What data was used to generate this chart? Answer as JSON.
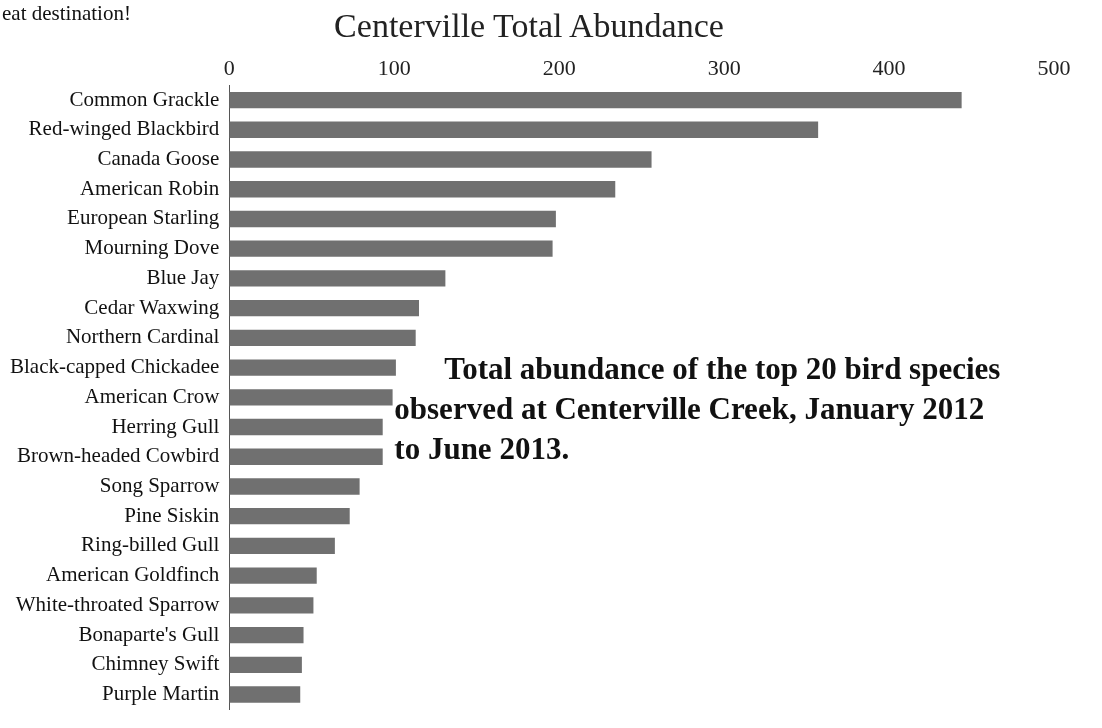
{
  "chart_data": {
    "type": "bar",
    "orientation": "horizontal",
    "title": "Centerville Total Abundance",
    "categories": [
      "Common Grackle",
      "Red-winged Blackbird",
      "Canada Goose",
      "American Robin",
      "European Starling",
      "Mourning Dove",
      "Blue Jay",
      "Cedar Waxwing",
      "Northern Cardinal",
      "Black-capped Chickadee",
      "American Crow",
      "Herring Gull",
      "Brown-headed Cowbird",
      "Song Sparrow",
      "Pine Siskin",
      "Ring-billed Gull",
      "American Goldfinch",
      "White-throated Sparrow",
      "Bonaparte's Gull",
      "Chimney Swift",
      "Purple Martin"
    ],
    "values": [
      444,
      357,
      256,
      234,
      198,
      196,
      131,
      115,
      113,
      101,
      99,
      93,
      93,
      79,
      73,
      64,
      53,
      51,
      45,
      44,
      43
    ],
    "color": "#707070",
    "xlim": [
      0,
      500
    ],
    "xticks": [
      0,
      100,
      200,
      300,
      400,
      500
    ],
    "grid": false,
    "legend": false,
    "annotations": [
      "eat destination!",
      "Total abundance of the top 20 bird species observed at Centerville Creek, January 2012 to June 2013."
    ]
  }
}
